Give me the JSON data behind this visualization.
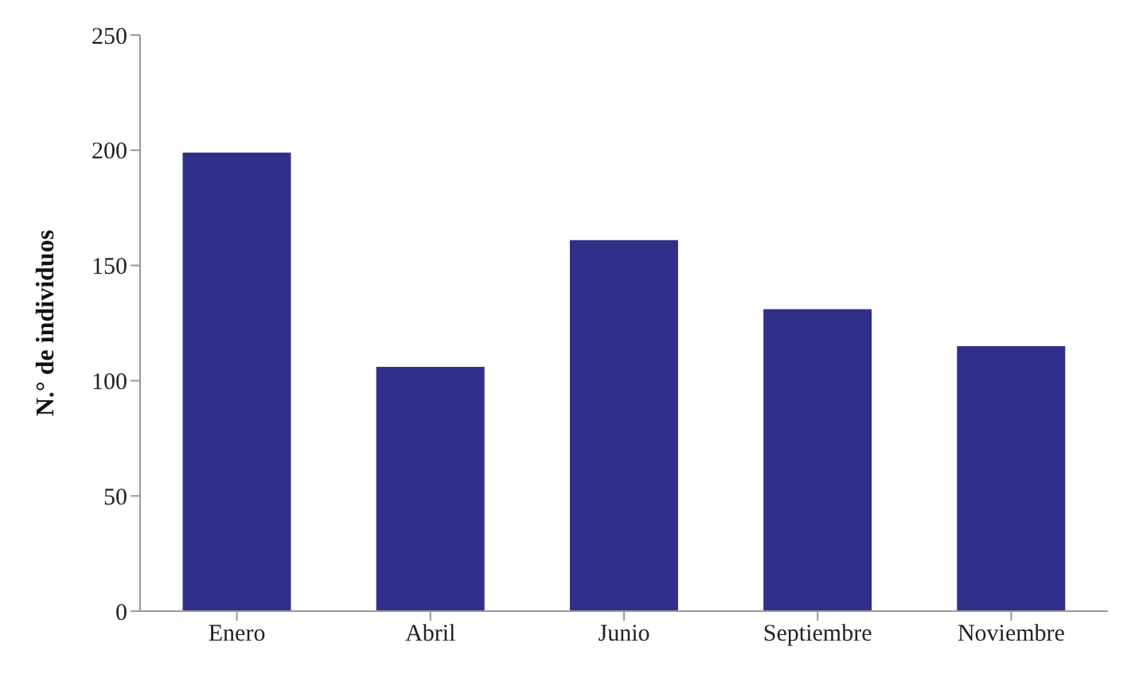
{
  "chart_data": {
    "type": "bar",
    "ylabel": "N.° de individuos",
    "categories": [
      "Enero",
      "Abril",
      "Junio",
      "Septiembre",
      "Noviembre"
    ],
    "values": [
      199,
      106,
      161,
      131,
      115
    ],
    "color": "#30308a",
    "ylim": [
      0,
      250
    ],
    "yticks": [
      0,
      50,
      100,
      150,
      200,
      250
    ],
    "grid": false
  }
}
